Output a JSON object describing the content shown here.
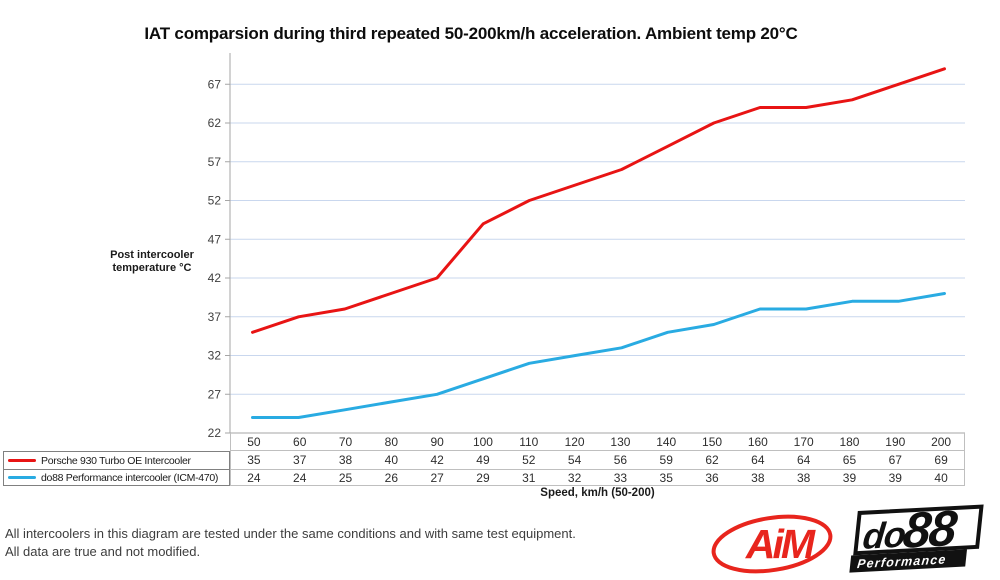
{
  "page": {
    "title": "IAT comparsion during third repeated 50-200km/h acceleration. Ambient temp 20°C"
  },
  "y_axis": {
    "label_line1": "Post intercooler",
    "label_line2": "temperature °C"
  },
  "x_axis": {
    "caption": "Speed, km/h (50-200)"
  },
  "footer": {
    "line1": "All intercoolers in this diagram are tested under the same conditions and with same test equipment.",
    "line2": "All data are true and not modified."
  },
  "logos": {
    "aim_text": "AiM",
    "do88_text_do": "do",
    "do88_text_88": "88",
    "do88_subtext": "Performance"
  },
  "colors": {
    "series_porsche": "#e81414",
    "series_do88": "#29abe2",
    "gridline": "#c9d7ee",
    "axis": "#a6a6a6",
    "tick_label": "#404040",
    "table_border": "#bfbfbf",
    "legend_border": "#808080",
    "logo_red": "#e8251d",
    "logo_black": "#111111"
  },
  "chart_data": {
    "type": "line",
    "title": "IAT comparsion during third repeated 50-200km/h acceleration. Ambient temp 20°C",
    "xlabel": "Speed, km/h (50-200)",
    "ylabel": "Post intercooler temperature °C",
    "x": [
      50,
      60,
      70,
      80,
      90,
      100,
      110,
      120,
      130,
      140,
      150,
      160,
      170,
      180,
      190,
      200
    ],
    "yticks": [
      22,
      27,
      32,
      37,
      42,
      47,
      52,
      57,
      62,
      67
    ],
    "ylim": [
      22,
      70.5
    ],
    "grid": true,
    "legend_position": "bottom-left",
    "series": [
      {
        "name": "Porsche 930 Turbo OE Intercooler",
        "color": "#e81414",
        "values": [
          35,
          37,
          38,
          40,
          42,
          49,
          52,
          54,
          56,
          59,
          62,
          64,
          64,
          65,
          67,
          69
        ]
      },
      {
        "name": "do88 Performance intercooler (ICM-470)",
        "color": "#29abe2",
        "values": [
          24,
          24,
          25,
          26,
          27,
          29,
          31,
          32,
          33,
          35,
          36,
          38,
          38,
          39,
          39,
          40
        ]
      }
    ]
  }
}
